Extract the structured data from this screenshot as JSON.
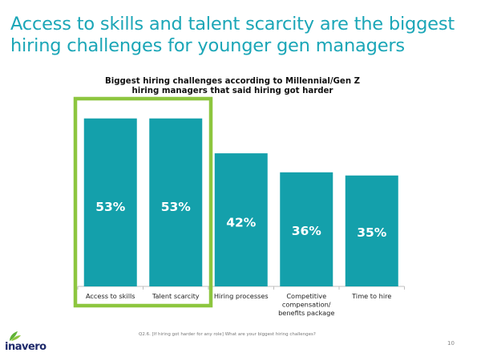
{
  "slide": {
    "title": "Access to skills and talent scarcity are the biggest hiring challenges for younger gen managers",
    "footnote": "Q2.6. [If hiring got harder for any role] What are your biggest hiring challenges?",
    "page_number": "10",
    "logo_text": "inavero"
  },
  "colors": {
    "title": "#1ba6b7",
    "bar": "#14a0ab",
    "highlight": "#8dc63f",
    "axis": "#bfbfbf",
    "logo": "#1e2a6b",
    "logo_leaf": "#5fb336"
  },
  "chart_data": {
    "type": "bar",
    "title": "Biggest hiring challenges according to Millennial/Gen Z hiring managers that said hiring got harder",
    "categories": [
      [
        "Access to skills"
      ],
      [
        "Talent scarcity"
      ],
      [
        "Hiring processes"
      ],
      [
        "Competitive",
        "compensation/",
        "benefits package"
      ],
      [
        "Time to hire"
      ]
    ],
    "values": [
      53,
      53,
      42,
      36,
      35
    ],
    "data_labels": [
      "53%",
      "53%",
      "42%",
      "36%",
      "35%"
    ],
    "ylim": [
      0,
      60
    ],
    "highlighted_categories": [
      0,
      1
    ],
    "grid": false
  }
}
